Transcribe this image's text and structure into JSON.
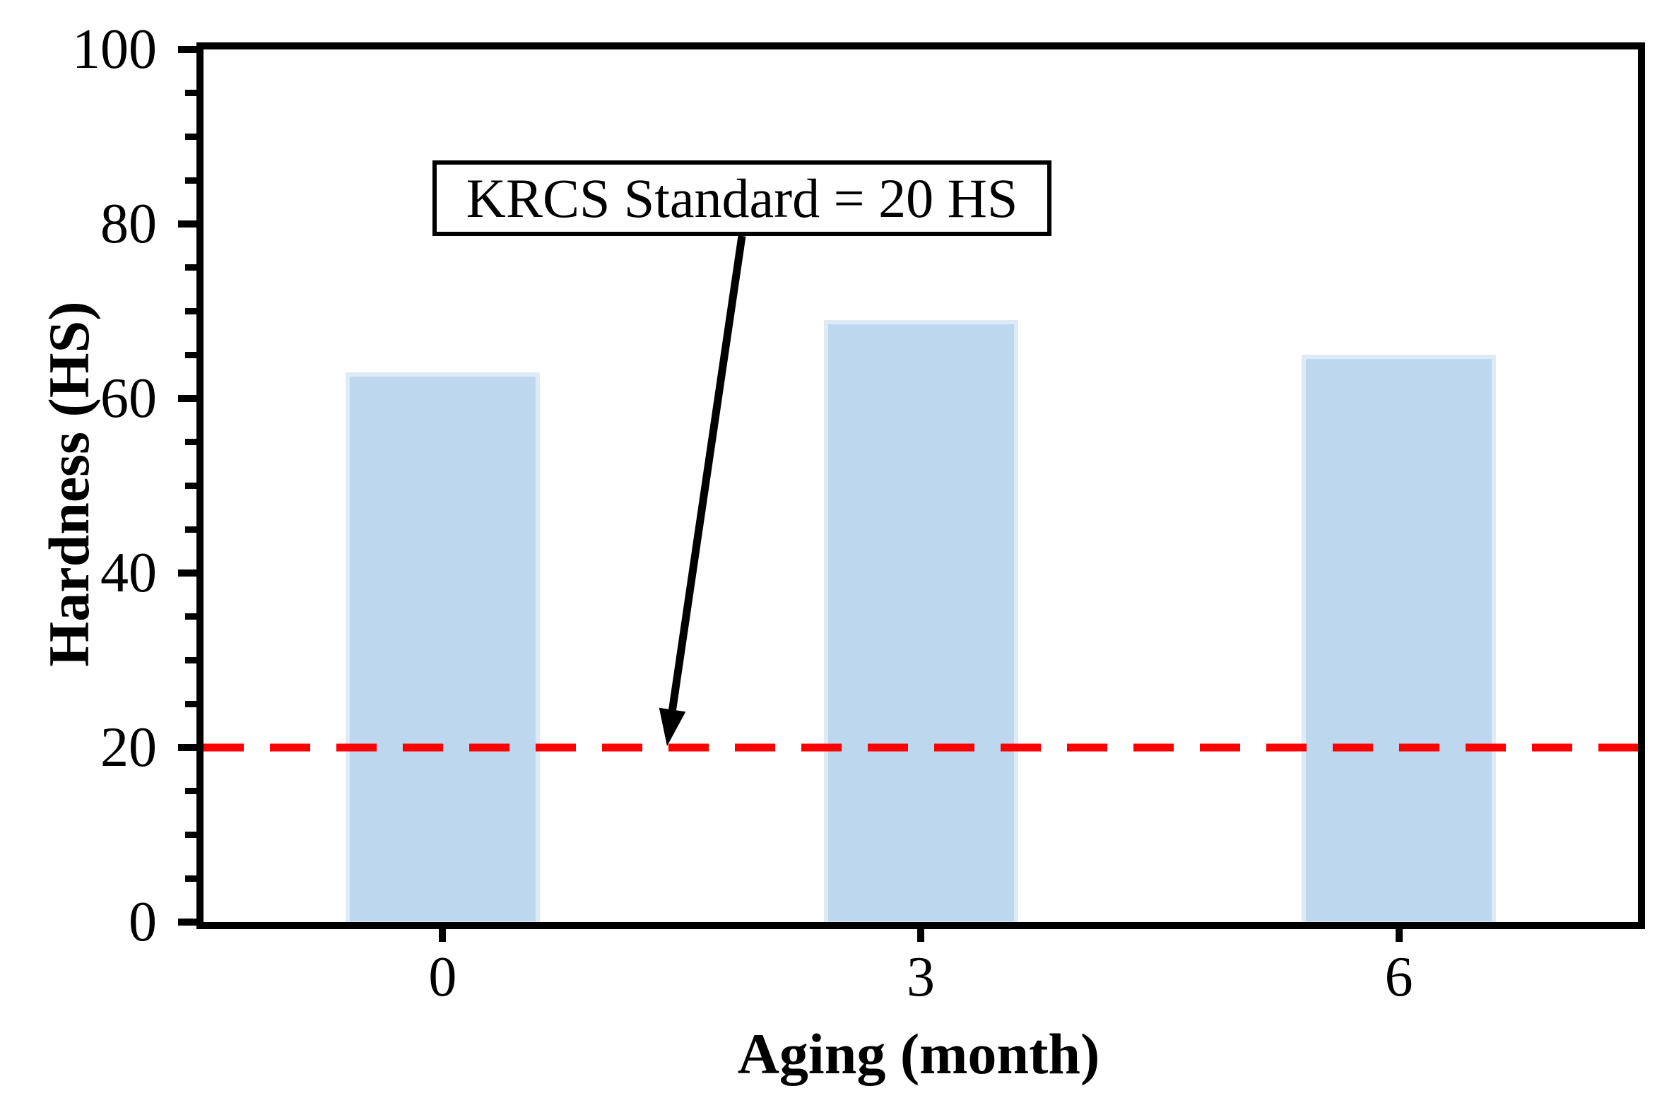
{
  "chart_data": {
    "type": "bar",
    "title": "",
    "xlabel": "Aging (month)",
    "ylabel": "Hardness (HS)",
    "categories": [
      "0",
      "3",
      "6"
    ],
    "values": [
      63,
      69,
      65
    ],
    "ylim": [
      0,
      100
    ],
    "yticks": [
      0,
      20,
      40,
      60,
      80,
      100
    ],
    "y_minor_step": 5,
    "grid": "off",
    "legend": "none",
    "bar_fill": "#BDD7EE",
    "bar_edge": "#DEEBF7",
    "threshold": {
      "value": 20,
      "color": "#FF0000",
      "style": "dashed"
    },
    "annotation": {
      "text": "KRCS Standard = 20 HS"
    }
  }
}
